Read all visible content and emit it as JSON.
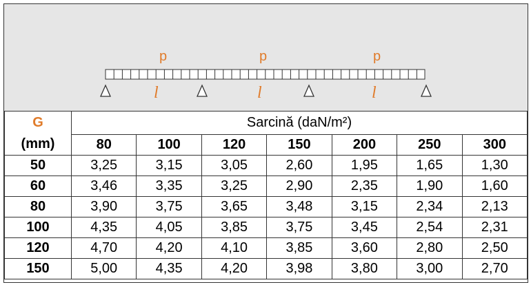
{
  "diagram": {
    "loads": [
      "p",
      "p",
      "p"
    ],
    "spans": [
      "l",
      "l",
      "l"
    ]
  },
  "table": {
    "header": {
      "g_label": "G",
      "g_unit": "(mm)",
      "group": "Sarcină (daN/m²)",
      "columns": [
        "80",
        "100",
        "120",
        "150",
        "200",
        "250",
        "300"
      ]
    },
    "rows": [
      [
        "50",
        "3,25",
        "3,15",
        "3,05",
        "2,60",
        "1,95",
        "1,65",
        "1,30"
      ],
      [
        "60",
        "3,46",
        "3,35",
        "3,25",
        "2,90",
        "2,35",
        "1,90",
        "1,60"
      ],
      [
        "80",
        "3,90",
        "3,75",
        "3,65",
        "3,48",
        "3,15",
        "2,34",
        "2,13"
      ],
      [
        "100",
        "4,35",
        "4,05",
        "3,85",
        "3,75",
        "3,45",
        "2,54",
        "2,31"
      ],
      [
        "120",
        "4,70",
        "4,20",
        "4,10",
        "3,85",
        "3,60",
        "2,80",
        "2,50"
      ],
      [
        "150",
        "5,00",
        "4,35",
        "4,20",
        "3,98",
        "3,80",
        "3,00",
        "2,70"
      ]
    ]
  }
}
